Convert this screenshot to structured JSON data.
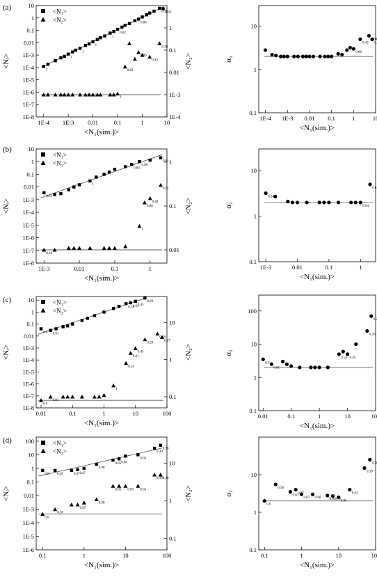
{
  "figure": {
    "legend_n1": "<N₁>",
    "legend_n2": "<N₂>"
  },
  "chart_data": [
    {
      "id": "a-left",
      "type": "scatter",
      "panel_label": "(a)",
      "xlabel": "<N₁(sim.)>",
      "ylabel": "<Nᵢ>",
      "y2label": "<N₂>",
      "xscale": "log",
      "yscale": "log",
      "y2scale": "log",
      "xlim": [
        5e-05,
        10
      ],
      "ylim": [
        1e-08,
        10
      ],
      "y2lim": [
        0.0001,
        10
      ],
      "xticks": [
        "1E-4",
        "1E-3",
        "0.01",
        "0.1",
        "1",
        "10"
      ],
      "yticks": [
        "1E-8",
        "1E-7",
        "1E-6",
        "1E-5",
        "1E-4",
        "1E-3",
        "0.01",
        "0.1",
        "1",
        "10"
      ],
      "y2ticks": [
        "1E-4",
        "1E-3",
        "0.01",
        "0.1",
        "1"
      ],
      "legend": [
        "<N₁>",
        "<N₂>"
      ],
      "legend_position": "top-left",
      "series": [
        {
          "name": "<N₁>",
          "marker": "square",
          "fit": "line",
          "x": [
            0.0001,
            0.00015,
            0.0003,
            0.0005,
            0.0007,
            0.001,
            0.0015,
            0.002,
            0.003,
            0.005,
            0.007,
            0.01,
            0.015,
            0.02,
            0.03,
            0.05,
            0.07,
            0.1,
            0.15,
            0.2,
            0.3,
            0.5,
            0.7,
            1,
            1.5,
            2,
            3,
            5,
            7
          ],
          "y": [
            0.00012,
            0.00018,
            0.00035,
            0.0006,
            0.0008,
            0.0012,
            0.0018,
            0.0025,
            0.0035,
            0.006,
            0.008,
            0.012,
            0.018,
            0.025,
            0.035,
            0.06,
            0.08,
            0.12,
            0.18,
            0.25,
            0.35,
            0.6,
            0.8,
            1.2,
            1.8,
            2.5,
            3.5,
            6,
            5.5
          ],
          "labels": [
            "1",
            "",
            "",
            "",
            "",
            "1",
            "",
            "",
            "1",
            "",
            "",
            "1",
            "",
            "",
            "",
            "1",
            "",
            "0.82",
            "",
            "",
            "",
            "",
            "0.86",
            "",
            "",
            "",
            "",
            "0.38",
            "0.34"
          ]
        },
        {
          "name": "<N₂>",
          "marker": "triangle",
          "axis": "right",
          "fit": "line",
          "x": [
            0.0001,
            0.00015,
            0.0003,
            0.0005,
            0.0007,
            0.001,
            0.0015,
            0.003,
            0.005,
            0.007,
            0.01,
            0.015,
            0.02,
            0.05,
            0.07,
            0.1,
            0.2,
            0.3,
            0.5,
            0.7,
            1,
            2,
            5
          ],
          "y": [
            0.001,
            0.001,
            0.001,
            0.001,
            0.001,
            0.001,
            0.001,
            0.001,
            0.001,
            0.001,
            0.001,
            0.001,
            0.001,
            0.001,
            0.001,
            0.0011,
            0.018,
            0.2,
            0.04,
            0.08,
            0.06,
            0.05,
            0.2
          ],
          "labels": [
            "",
            "",
            "",
            "",
            "",
            "",
            "",
            "",
            "",
            "",
            "",
            "",
            "",
            "",
            "",
            "1",
            "0.82",
            "",
            "",
            "0.86",
            "",
            "0.43",
            "0.38"
          ]
        }
      ]
    },
    {
      "id": "a-right",
      "type": "scatter",
      "xlabel": "<N₁(sim.)>",
      "ylabel": "α₂",
      "xscale": "log",
      "yscale": "log",
      "xlim": [
        5e-05,
        10
      ],
      "ylim": [
        0.1,
        30
      ],
      "xticks": [
        "1E-4",
        "1E-3",
        "0.01",
        "0.1",
        "1",
        "10"
      ],
      "yticks": [
        "0.1",
        "1",
        "10"
      ],
      "hline": 2,
      "series": [
        {
          "name": "α₂",
          "marker": "circle",
          "x": [
            0.0001,
            0.0002,
            0.0003,
            0.0005,
            0.0007,
            0.001,
            0.002,
            0.003,
            0.005,
            0.007,
            0.01,
            0.015,
            0.03,
            0.05,
            0.07,
            0.1,
            0.2,
            0.3,
            0.5,
            0.7,
            1,
            2,
            5,
            7
          ],
          "y": [
            2.8,
            2.2,
            2.1,
            2.0,
            2.0,
            2.0,
            2.0,
            2.0,
            2.0,
            2.0,
            2.0,
            2.0,
            2.0,
            2.0,
            2.0,
            2.0,
            2.3,
            2.2,
            2.8,
            3.2,
            3.0,
            5.0,
            6.0,
            5.0
          ],
          "labels": [
            "",
            "",
            "",
            "",
            "",
            "",
            "",
            "",
            "",
            "",
            "",
            "",
            "",
            "",
            "",
            "",
            "",
            "",
            "",
            "",
            "0.86",
            "0.43",
            "0.34",
            "0.38"
          ]
        }
      ]
    },
    {
      "id": "b-left",
      "type": "scatter",
      "panel_label": "(b)",
      "xlabel": "<N₁(sim.)>",
      "ylabel": "<Nᵢ>",
      "y2label": "<N₂>",
      "xscale": "log",
      "yscale": "log",
      "y2scale": "log",
      "xlim": [
        0.0006,
        3
      ],
      "ylim": [
        1e-08,
        10
      ],
      "y2lim": [
        0.005,
        2
      ],
      "xticks": [
        "1E-3",
        "0.01",
        "0.1",
        "1"
      ],
      "yticks": [
        "1E-8",
        "1E-7",
        "1E-6",
        "1E-5",
        "1E-4",
        "1E-3",
        "0.01",
        "0.1",
        "1",
        "10"
      ],
      "y2ticks": [
        "0.01",
        "0.1",
        "1"
      ],
      "legend": [
        "<N₁>",
        "<N₂>"
      ],
      "legend_position": "top-left",
      "series": [
        {
          "name": "<N₁>",
          "marker": "square",
          "fit": "line",
          "x": [
            0.001,
            0.002,
            0.003,
            0.005,
            0.007,
            0.01,
            0.02,
            0.03,
            0.05,
            0.07,
            0.1,
            0.2,
            0.3,
            0.5,
            1,
            2
          ],
          "y": [
            0.0035,
            0.0025,
            0.003,
            0.006,
            0.01,
            0.015,
            0.03,
            0.06,
            0.1,
            0.15,
            0.25,
            0.4,
            0.6,
            1,
            1.3,
            2
          ],
          "labels": [
            "0.34",
            "",
            "",
            "",
            "",
            "",
            "1",
            "",
            "",
            "",
            "",
            "",
            "0.84",
            "0.80",
            "",
            "0.61"
          ]
        },
        {
          "name": "<N₂>",
          "marker": "triangle",
          "axis": "right",
          "fit": "line",
          "x": [
            0.001,
            0.002,
            0.005,
            0.007,
            0.01,
            0.02,
            0.05,
            0.07,
            0.1,
            0.2,
            0.5,
            0.7,
            1,
            2
          ],
          "y": [
            0.01,
            0.01,
            0.011,
            0.011,
            0.011,
            0.011,
            0.011,
            0.011,
            0.011,
            0.012,
            0.035,
            0.12,
            0.15,
            0.3
          ],
          "labels": [
            "0.34",
            "",
            "",
            "",
            "",
            "",
            "",
            "",
            "",
            "",
            "1",
            "0.80",
            "0.84",
            "0.61"
          ]
        }
      ]
    },
    {
      "id": "b-right",
      "type": "scatter",
      "xlabel": "<N₁(sim.)>",
      "ylabel": "α₂",
      "xscale": "log",
      "yscale": "log",
      "xlim": [
        0.0006,
        3
      ],
      "ylim": [
        0.1,
        30
      ],
      "xticks": [
        "1E-3",
        "0.01",
        "0.1",
        "1"
      ],
      "yticks": [
        "0.1",
        "1",
        "10"
      ],
      "hline": 2,
      "series": [
        {
          "name": "α₂",
          "marker": "circle",
          "x": [
            0.001,
            0.002,
            0.005,
            0.007,
            0.01,
            0.02,
            0.05,
            0.07,
            0.1,
            0.2,
            0.5,
            0.7,
            1,
            2
          ],
          "y": [
            3.2,
            2.7,
            2.1,
            2.0,
            2.0,
            2.0,
            2.0,
            2.0,
            2.0,
            2.0,
            2.0,
            2.0,
            2.0,
            5.0
          ],
          "labels": [
            "0.34",
            "",
            "",
            "",
            "",
            "",
            "",
            "",
            "",
            "",
            "",
            "",
            "0.84",
            "0.61"
          ]
        }
      ]
    },
    {
      "id": "c-left",
      "type": "scatter",
      "panel_label": "(c)",
      "xlabel": "<N₁(sim.)>",
      "ylabel": "<Nᵢ>",
      "y2label": "<N₂>",
      "xscale": "log",
      "yscale": "log",
      "y2scale": "log",
      "xlim": [
        0.007,
        100
      ],
      "ylim": [
        1e-08,
        20
      ],
      "y2lim": [
        0.05,
        50
      ],
      "xticks": [
        "0.01",
        "0.1",
        "1",
        "10",
        "100"
      ],
      "yticks": [
        "1E-8",
        "1E-7",
        "1E-6",
        "1E-5",
        "1E-4",
        "1E-3",
        "0.01",
        "0.1",
        "1",
        "10"
      ],
      "y2ticks": [
        "0.1",
        "1",
        "10"
      ],
      "legend": [
        "<N₁>",
        "<N₂>"
      ],
      "legend_position": "top-left",
      "series": [
        {
          "name": "<N₁>",
          "marker": "square",
          "fit": "line",
          "x": [
            0.01,
            0.02,
            0.03,
            0.05,
            0.07,
            0.1,
            0.2,
            0.3,
            0.5,
            1,
            2,
            3,
            5,
            7,
            10,
            20
          ],
          "y": [
            0.04,
            0.03,
            0.04,
            0.06,
            0.07,
            0.1,
            0.2,
            0.3,
            0.5,
            1,
            2,
            3,
            5,
            6,
            8,
            15
          ],
          "labels": [
            "0.6",
            "0.81",
            "",
            "",
            "",
            "",
            "",
            "",
            "",
            "",
            "",
            "",
            "0.54",
            "0.61",
            "0.45",
            "0.29"
          ]
        },
        {
          "name": "<N₂>",
          "marker": "triangle",
          "axis": "right",
          "fit": "line",
          "x": [
            0.01,
            0.02,
            0.05,
            0.07,
            0.1,
            0.2,
            0.5,
            0.7,
            1,
            2,
            5,
            7,
            10,
            20,
            50,
            70
          ],
          "y": [
            0.08,
            0.1,
            0.1,
            0.1,
            0.1,
            0.1,
            0.1,
            0.1,
            0.11,
            0.2,
            0.8,
            1.5,
            2,
            3.5,
            5,
            4
          ],
          "labels": [
            "0.6",
            "0.81",
            "",
            "",
            "",
            "",
            "",
            "",
            "",
            "1",
            "0.54",
            "0.61",
            "0.45",
            "0.29",
            "0.26",
            "0.27"
          ]
        }
      ]
    },
    {
      "id": "c-right",
      "type": "scatter",
      "xlabel": "<N₁(sim.)>",
      "ylabel": "α₂",
      "xscale": "log",
      "yscale": "log",
      "xlim": [
        0.007,
        100
      ],
      "ylim": [
        0.1,
        300
      ],
      "xticks": [
        "0.01",
        "0.1",
        "1",
        "10",
        "100"
      ],
      "yticks": [
        "0.1",
        "1",
        "10",
        "100"
      ],
      "hline": 2,
      "series": [
        {
          "name": "α₂",
          "marker": "circle",
          "x": [
            0.01,
            0.02,
            0.05,
            0.07,
            0.1,
            0.2,
            0.5,
            0.7,
            1,
            2,
            5,
            7,
            10,
            20,
            50,
            70
          ],
          "y": [
            3.5,
            2.5,
            3.0,
            2.5,
            2.2,
            2.0,
            2.0,
            2.0,
            2.0,
            2.0,
            5.0,
            6.0,
            5.0,
            10,
            25,
            70
          ],
          "labels": [
            "0.6",
            "0.81",
            "",
            "",
            "",
            "",
            "",
            "",
            "",
            "",
            "0.54",
            "",
            "0.45",
            "",
            "0.26",
            "0.27"
          ]
        }
      ]
    },
    {
      "id": "d-left",
      "type": "scatter",
      "panel_label": "(d)",
      "xlabel": "<N₁(sim.)>",
      "ylabel": "<Nᵢ>",
      "y2label": "<N₂>",
      "xscale": "log",
      "yscale": "log",
      "y2scale": "log",
      "xlim": [
        0.07,
        100
      ],
      "ylim": [
        1e-06,
        200
      ],
      "y2lim": [
        0.05,
        50
      ],
      "xticks": [
        "0.1",
        "1",
        "10",
        "100"
      ],
      "yticks": [
        "1E-6",
        "1E-5",
        "1E-4",
        "1E-3",
        "0.01",
        "0.1",
        "1",
        "10",
        "100"
      ],
      "y2ticks": [
        "0.1",
        "1",
        "10"
      ],
      "legend": [
        "<N₁>",
        "<N₂>"
      ],
      "legend_position": "top-left",
      "series": [
        {
          "name": "<N₁>",
          "marker": "square",
          "fit": "line",
          "x": [
            0.1,
            0.2,
            0.5,
            0.7,
            1,
            2,
            5,
            7,
            10,
            20,
            50,
            70
          ],
          "y": [
            0.7,
            0.7,
            0.7,
            0.8,
            1.0,
            2,
            4,
            5,
            8,
            10,
            30,
            50
          ],
          "labels": [
            "0.6",
            "0.58",
            "0.67",
            "0.87",
            "",
            "0.98",
            "0.85",
            "0.64",
            "",
            "0.63",
            "0.39",
            "0.36"
          ]
        },
        {
          "name": "<N₂>",
          "marker": "triangle",
          "axis": "right",
          "fit": "line",
          "x": [
            0.1,
            0.2,
            0.5,
            0.7,
            1,
            2,
            5,
            7,
            10,
            20,
            50,
            70
          ],
          "y": [
            0.45,
            0.6,
            0.8,
            0.8,
            0.9,
            1.1,
            2.5,
            2.5,
            2.5,
            2.5,
            5,
            5
          ],
          "labels": [
            "0.6",
            "0.58",
            "",
            "0.87",
            "",
            "0.98",
            "0.85",
            "",
            "0.85",
            "0.63",
            "0.39",
            "0.36"
          ]
        }
      ]
    },
    {
      "id": "d-right",
      "type": "scatter",
      "xlabel": "<N₁(sim.)>",
      "ylabel": "α₂",
      "xscale": "log",
      "yscale": "log",
      "xlim": [
        0.07,
        100
      ],
      "ylim": [
        0.1,
        100
      ],
      "xticks": [
        "0.1",
        "1",
        "10",
        "100"
      ],
      "yticks": [
        "0.1",
        "1",
        "10"
      ],
      "hline": 2,
      "series": [
        {
          "name": "α₂",
          "marker": "circle",
          "x": [
            0.1,
            0.2,
            0.5,
            0.7,
            1,
            2,
            5,
            7,
            10,
            20,
            50,
            70
          ],
          "y": [
            2.0,
            5.5,
            3.5,
            4.0,
            3.0,
            3.0,
            2.8,
            2.7,
            2.5,
            4.0,
            15,
            25
          ],
          "labels": [
            "0.6",
            "0.58",
            "0.63",
            "0.67",
            "0.87",
            "0.98",
            "0.85",
            "0.57",
            "0.85",
            "0.63",
            "0.39",
            "0.36"
          ]
        }
      ]
    }
  ]
}
